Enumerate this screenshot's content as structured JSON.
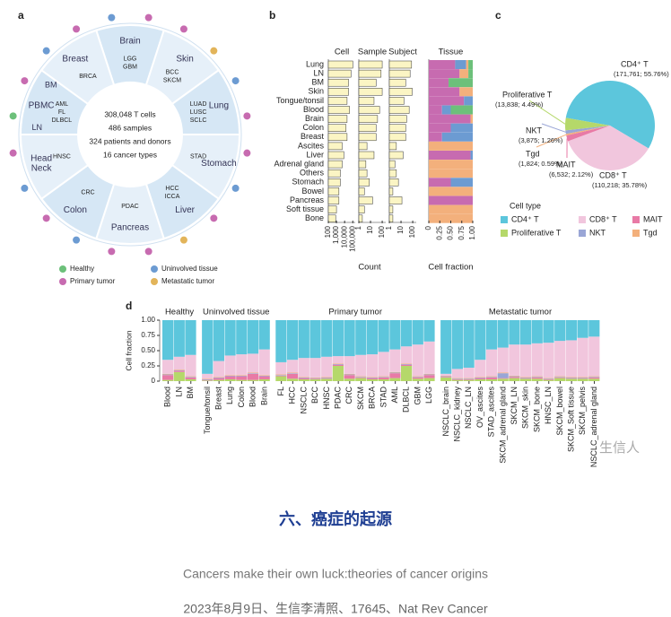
{
  "panel_a": {
    "label": "a",
    "center_lines": [
      "308,048 T cells",
      "486 samples",
      "324 patients and donors",
      "16 cancer types"
    ],
    "segments": [
      {
        "name": [
          "Brain"
        ],
        "subtypes": [
          "LGG",
          "GBM"
        ],
        "dots": [
          1,
          2
        ]
      },
      {
        "name": [
          "Skin"
        ],
        "subtypes": [
          "BCC",
          "SKCM"
        ],
        "dots": [
          2,
          3
        ]
      },
      {
        "name": [
          "Lung"
        ],
        "subtypes": [
          "LUAD",
          "LUSC",
          "SCLC"
        ],
        "dots": [
          1,
          2
        ]
      },
      {
        "name": [
          "Stomach"
        ],
        "subtypes": [
          "STAD"
        ],
        "dots": [
          2,
          1
        ]
      },
      {
        "name": [
          "Liver"
        ],
        "subtypes": [
          "HCC",
          "ICCA"
        ],
        "dots": [
          2,
          3
        ]
      },
      {
        "name": [
          "Pancreas"
        ],
        "subtypes": [
          "PDAC"
        ],
        "dots": [
          2,
          2
        ]
      },
      {
        "name": [
          "Colon"
        ],
        "subtypes": [
          "CRC"
        ],
        "dots": [
          1,
          2
        ]
      },
      {
        "name": [
          "Head",
          "Neck"
        ],
        "subtypes": [
          "HNSC"
        ],
        "dots": [
          1,
          2
        ]
      },
      {
        "name": [
          "PBMC"
        ],
        "subtypes": [
          "AML",
          "FL",
          "DLBCL"
        ],
        "extra": [
          "BM",
          "LN"
        ],
        "dots": [
          0,
          2
        ]
      },
      {
        "name": [
          "Breast"
        ],
        "subtypes": [
          "BRCA"
        ],
        "dots": [
          1,
          2
        ]
      }
    ],
    "legend": [
      {
        "name": "Healthy",
        "color": "#6cc07a"
      },
      {
        "name": "Uninvolved tissue",
        "color": "#6c9bd2"
      },
      {
        "name": "Primary tumor",
        "color": "#c76bb0"
      },
      {
        "name": "Metastatic tumor",
        "color": "#e2b45a"
      }
    ]
  },
  "chart_data": [
    {
      "type": "hbar",
      "panel_label": "b",
      "title": "Cell",
      "categories": [
        "Lung",
        "LN",
        "BM",
        "Skin",
        "Tongue/tonsil",
        "Blood",
        "Brain",
        "Colon",
        "Breast",
        "Ascites",
        "Liver",
        "Adrenal gland",
        "Others",
        "Stomach",
        "Bowel",
        "Pancreas",
        "Soft tissue",
        "Bone"
      ],
      "values": [
        100000,
        60000,
        30000,
        30000,
        20000,
        40000,
        20000,
        15000,
        20000,
        5000,
        8000,
        5000,
        3000,
        3000,
        2000,
        2000,
        1000,
        800
      ],
      "color": "#fbf5c4",
      "xlog": true,
      "xlim": [
        100,
        200000
      ],
      "xticks": [
        100,
        {
          "value": 1000,
          "label": "1,000"
        },
        {
          "value": 10000,
          "label": "10,000"
        },
        {
          "value": 100000,
          "label": "100,000"
        }
      ]
    },
    {
      "type": "hbar",
      "title": "Sample",
      "xlabel": "Count",
      "values": [
        100,
        80,
        30,
        100,
        20,
        60,
        40,
        30,
        30,
        5,
        20,
        4,
        5,
        8,
        3,
        15,
        3,
        2
      ],
      "color": "#fbf5c4",
      "xlog": true,
      "xlim": [
        1,
        200
      ],
      "xticks": [
        1,
        10,
        100
      ]
    },
    {
      "type": "hbar",
      "title": "Subject",
      "values": [
        80,
        60,
        25,
        90,
        18,
        50,
        30,
        25,
        25,
        4,
        15,
        3,
        4,
        6,
        2,
        12,
        2,
        2
      ],
      "color": "#fbf5c4",
      "xlog": true,
      "xlim": [
        1,
        200
      ],
      "xticks": [
        1,
        10,
        100
      ]
    },
    {
      "type": "hstack",
      "title": "Tissue",
      "xlabel": "Cell fraction",
      "xlim": [
        0,
        1
      ],
      "xticks": [
        0,
        0.25,
        {
          "value": 0.5,
          "label": "0.50"
        },
        0.75,
        {
          "value": 1,
          "label": "1.00"
        }
      ],
      "series": [
        {
          "color": "#c76bb0",
          "values": [
            0.6,
            0.7,
            0.45,
            0.7,
            0.8,
            0.3,
            0.95,
            0.5,
            0.3,
            0,
            0.95,
            0,
            0,
            0.5,
            0,
            1,
            0,
            0
          ]
        },
        {
          "color": "#6c9bd2",
          "values": [
            0.25,
            0,
            0,
            0,
            0.2,
            0.2,
            0,
            0.5,
            0.7,
            0,
            0.05,
            0,
            0,
            0.5,
            0,
            0,
            0,
            0
          ]
        },
        {
          "color": "#f3b07c",
          "values": [
            0.05,
            0.2,
            0,
            0.3,
            0,
            0,
            0.05,
            0,
            0,
            1,
            0,
            1,
            1,
            0,
            1,
            0,
            1,
            1
          ]
        },
        {
          "color": "#6cc07a",
          "values": [
            0.1,
            0.1,
            0.55,
            0,
            0,
            0.5,
            0,
            0,
            0,
            0,
            0,
            0,
            0,
            0,
            0,
            0,
            0,
            0
          ]
        }
      ]
    },
    {
      "type": "pie",
      "panel_label": "c",
      "legend_title": "Cell type",
      "categories": [
        "CD4⁺ T",
        "CD8⁺ T",
        "MAIT",
        "Tgd",
        "NKT",
        "Proliferative T"
      ],
      "values": [
        55.76,
        35.78,
        2.12,
        0.59,
        1.26,
        4.49
      ],
      "value_labels": [
        "(171,761; 55.76%)",
        "(110,218; 35.78%)",
        "(6,532; 2.12%)",
        "(1,824; 0.59%)",
        "(3,875; 1.26%)",
        "(13,838; 4.49%)"
      ],
      "colors": [
        "#5cc6dc",
        "#f1c6dd",
        "#e87aa6",
        "#f3b07c",
        "#9aa6d6",
        "#b5d86a"
      ]
    },
    {
      "type": "stacked_bar",
      "panel_label": "d",
      "ylabel": "Cell fraction",
      "ylim": [
        0,
        1
      ],
      "yticks": [
        0,
        0.25,
        {
          "value": 0.5,
          "label": "0.50"
        },
        0.75,
        {
          "value": 1,
          "label": "1.00"
        }
      ],
      "groups": [
        {
          "name": "Healthy",
          "categories": [
            "Blood",
            "LN",
            "BM"
          ]
        },
        {
          "name": "Uninvolved tissue",
          "categories": [
            "Tongue/tonsil",
            "Breast",
            "Lung",
            "Colon",
            "Blood",
            "Brain"
          ]
        },
        {
          "name": "Primary tumor",
          "categories": [
            "FL",
            "HCC",
            "NSCLC",
            "BCC",
            "HNSC",
            "PDAC",
            "CRC",
            "SKCM",
            "BRCA",
            "STAD",
            "AML",
            "DLBCL",
            "GBM",
            "LGG"
          ]
        },
        {
          "name": "Metastatic tumor",
          "categories": [
            "NSCLC_brain",
            "NSCLC_kidney",
            "NSCLC_LN",
            "OV_ascites",
            "STAD_ascites",
            "SKCM_adrenal gland",
            "SKCM_LN",
            "SKCM_skin",
            "SKCM_bone",
            "HNSC_LN",
            "SKCM_bowel",
            "SKCM_Soft tissue",
            "SKCM_pelvis",
            "NSCLC_adrenal gland"
          ]
        }
      ],
      "series": [
        {
          "color": "#b5d86a",
          "values": [
            0.02,
            0.15,
            0.03,
            0.01,
            0.02,
            0.03,
            0.02,
            0.02,
            0.03,
            0.08,
            0.04,
            0.03,
            0.03,
            0.04,
            0.25,
            0.04,
            0.05,
            0.03,
            0.03,
            0.05,
            0.25,
            0.04,
            0.05,
            0.06,
            0.02,
            0.02,
            0.03,
            0.03,
            0.04,
            0.05,
            0.04,
            0.04,
            0.02,
            0.05,
            0.04,
            0.04,
            0.04
          ]
        },
        {
          "color": "#e87aa6",
          "values": [
            0.08,
            0.02,
            0.03,
            0.01,
            0.03,
            0.05,
            0.06,
            0.1,
            0.05,
            0.01,
            0.08,
            0.02,
            0.01,
            0.01,
            0.02,
            0.06,
            0.01,
            0.02,
            0.03,
            0.08,
            0.02,
            0.02,
            0.05,
            0.01,
            0.01,
            0.01,
            0.02,
            0.03,
            0.01,
            0.02,
            0.01,
            0.02,
            0.01,
            0.01,
            0.01,
            0.01,
            0.02
          ]
        },
        {
          "color": "#9aa6d6",
          "values": [
            0.01,
            0.01,
            0.01,
            0.01,
            0.01,
            0.01,
            0.01,
            0.01,
            0.01,
            0.01,
            0.01,
            0.01,
            0.01,
            0.01,
            0.01,
            0.01,
            0.01,
            0.01,
            0.01,
            0.01,
            0.01,
            0.01,
            0.01,
            0.01,
            0.01,
            0.01,
            0.01,
            0.01,
            0.08,
            0.01,
            0.01,
            0.01,
            0.01,
            0.01,
            0.01,
            0.01,
            0.01
          ]
        },
        {
          "color": "#f3b07c",
          "values": [
            0.01,
            0.01,
            0.01,
            0.01,
            0.01,
            0.01,
            0.01,
            0.01,
            0.01,
            0.01,
            0.01,
            0.01,
            0.01,
            0.01,
            0.01,
            0.01,
            0.01,
            0.01,
            0.01,
            0.01,
            0.01,
            0.01,
            0.01,
            0.01,
            0.01,
            0.01,
            0.01,
            0.01,
            0.01,
            0.01,
            0.01,
            0.01,
            0.01,
            0.01,
            0.01,
            0.01,
            0.01
          ]
        },
        {
          "color": "#f1c6dd",
          "values": [
            0.23,
            0.21,
            0.35,
            0.08,
            0.26,
            0.32,
            0.34,
            0.31,
            0.42,
            0.2,
            0.21,
            0.31,
            0.32,
            0.33,
            0.12,
            0.29,
            0.35,
            0.37,
            0.4,
            0.37,
            0.28,
            0.52,
            0.53,
            0.03,
            0.15,
            0.17,
            0.28,
            0.44,
            0.41,
            0.51,
            0.53,
            0.54,
            0.58,
            0.58,
            0.6,
            0.64,
            0.65
          ]
        },
        {
          "color": "#5cc6dc",
          "values": [
            0.65,
            0.6,
            0.57,
            0.88,
            0.67,
            0.58,
            0.56,
            0.55,
            0.48,
            0.69,
            0.65,
            0.62,
            0.62,
            0.6,
            0.59,
            0.59,
            0.57,
            0.56,
            0.52,
            0.48,
            0.43,
            0.4,
            0.35,
            0.88,
            0.8,
            0.78,
            0.65,
            0.48,
            0.45,
            0.4,
            0.4,
            0.38,
            0.37,
            0.34,
            0.33,
            0.29,
            0.27
          ]
        }
      ]
    }
  ],
  "article": {
    "heading": "六、癌症的起源",
    "subtitle": "Cancers make their own luck:theories of cancer origins",
    "meta": "2023年8月9日、生信李清照、17645、Nat Rev Cancer",
    "watermark": "生信人"
  }
}
